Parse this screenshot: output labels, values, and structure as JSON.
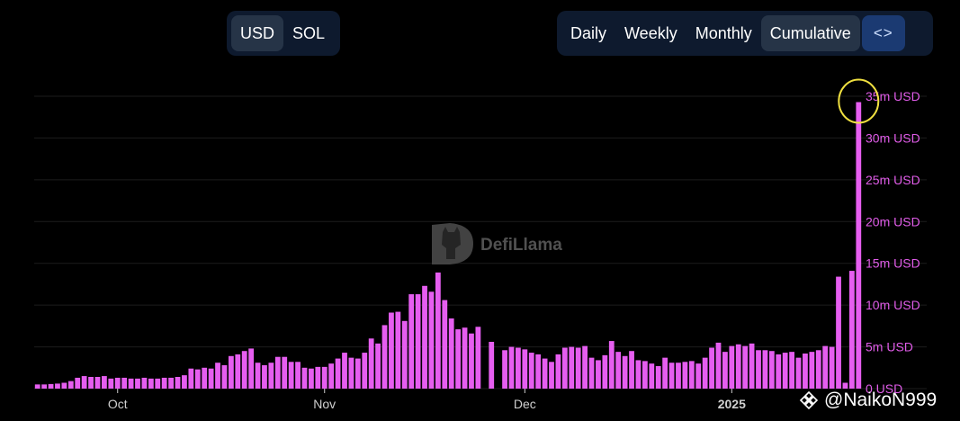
{
  "currency_toggle": {
    "options": [
      "USD",
      "SOL"
    ],
    "selected": "USD"
  },
  "period_toggle": {
    "options": [
      "Daily",
      "Weekly",
      "Monthly",
      "Cumulative"
    ],
    "selected": "Cumulative",
    "embed_label": "<>"
  },
  "watermark": {
    "text": "DefiLlama"
  },
  "credit": {
    "text": "@NaikoN999",
    "icon": "diamond-logo-icon"
  },
  "colors": {
    "bar": "#e65ef0",
    "axis_text": "#e05ce8",
    "grid": "#1c1c1c",
    "highlight_circle": "#f0e040"
  },
  "chart_data": {
    "type": "bar",
    "y_unit": "USD",
    "ylim": [
      0,
      35000000
    ],
    "y_ticks": [
      {
        "value": 0,
        "label": "0 USD"
      },
      {
        "value": 5000000,
        "label": "5m USD"
      },
      {
        "value": 10000000,
        "label": "10m USD"
      },
      {
        "value": 15000000,
        "label": "15m USD"
      },
      {
        "value": 20000000,
        "label": "20m USD"
      },
      {
        "value": 25000000,
        "label": "25m USD"
      },
      {
        "value": 30000000,
        "label": "30m USD"
      },
      {
        "value": 35000000,
        "label": "35m USD"
      }
    ],
    "x_ticks": [
      {
        "index": 12,
        "label": "Oct",
        "bold": false
      },
      {
        "index": 43,
        "label": "Nov",
        "bold": false
      },
      {
        "index": 73,
        "label": "Dec",
        "bold": false
      },
      {
        "index": 104,
        "label": "2025",
        "bold": true
      }
    ],
    "grid": true,
    "highlight": {
      "index": 123,
      "shape": "circle"
    },
    "values": [
      0.5,
      0.5,
      0.55,
      0.6,
      0.7,
      0.9,
      1.3,
      1.5,
      1.4,
      1.4,
      1.5,
      1.2,
      1.3,
      1.3,
      1.2,
      1.2,
      1.3,
      1.2,
      1.2,
      1.3,
      1.3,
      1.4,
      1.6,
      2.4,
      2.3,
      2.5,
      2.4,
      3.1,
      2.8,
      3.9,
      4.1,
      4.5,
      4.8,
      3.1,
      2.8,
      3.1,
      3.8,
      3.8,
      3.2,
      3.2,
      2.5,
      2.4,
      2.6,
      2.6,
      3.0,
      3.6,
      4.3,
      3.7,
      3.6,
      4.3,
      6.0,
      5.4,
      7.6,
      9.1,
      9.2,
      8.1,
      11.3,
      11.3,
      12.3,
      11.6,
      13.9,
      10.6,
      8.4,
      7.1,
      7.3,
      6.6,
      7.4,
      0,
      5.6,
      0,
      4.6,
      5.0,
      4.9,
      4.7,
      4.3,
      4.1,
      3.6,
      3.2,
      4.1,
      4.9,
      5.0,
      4.9,
      5.1,
      3.7,
      3.4,
      4.0,
      5.7,
      4.4,
      3.9,
      4.5,
      3.4,
      3.3,
      3.0,
      2.7,
      3.7,
      3.1,
      3.1,
      3.2,
      3.3,
      3.0,
      3.7,
      4.9,
      5.5,
      4.4,
      5.1,
      5.3,
      5.1,
      5.4,
      4.6,
      4.6,
      4.5,
      4.1,
      4.3,
      4.4,
      3.7,
      4.2,
      4.4,
      4.6,
      5.1,
      5.0,
      13.4,
      0.7,
      14.1,
      34.3
    ],
    "values_unit_note": "millions USD"
  }
}
